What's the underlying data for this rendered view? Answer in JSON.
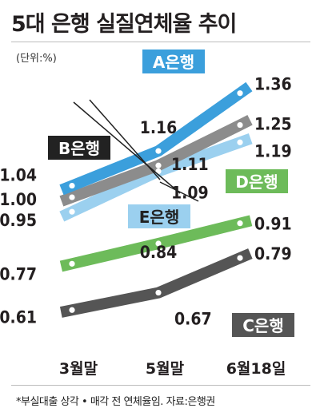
{
  "header": {
    "title": "5대 은행 실질연체율 추이",
    "unit": "(단위:%)"
  },
  "footer": {
    "note": "*부실대출 상각 • 매각 전 연체율임. 자료:은행권"
  },
  "chart_data": {
    "type": "line",
    "categories": [
      "3월말",
      "5월말",
      "6월18일"
    ],
    "series": [
      {
        "name": "A은행",
        "values": [
          1.04,
          1.16,
          1.36
        ],
        "color": "#3b9fdc"
      },
      {
        "name": "B은행",
        "values": [
          1.0,
          1.11,
          1.25
        ],
        "color": "#8c8c8c"
      },
      {
        "name": "E은행",
        "values": [
          0.95,
          1.09,
          1.19
        ],
        "color": "#9bd0ef"
      },
      {
        "name": "D은행",
        "values": [
          0.77,
          0.84,
          0.91
        ],
        "color": "#6dbb5a"
      },
      {
        "name": "C은행",
        "values": [
          0.61,
          0.67,
          0.79
        ],
        "color": "#555555"
      }
    ],
    "xlabel": "",
    "ylabel": "",
    "ylim": [
      0.55,
      1.42
    ],
    "grid": false,
    "legend": "inline-labels"
  }
}
